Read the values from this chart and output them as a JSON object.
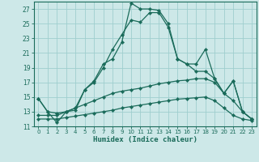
{
  "xlabel": "Humidex (Indice chaleur)",
  "bg_color": "#cde8e8",
  "grid_color": "#9fcece",
  "line_color": "#1a6b5a",
  "marker": "D",
  "markersize": 2.2,
  "linewidth": 0.9,
  "xlim": [
    -0.5,
    23.5
  ],
  "ylim": [
    11,
    28
  ],
  "yticks": [
    11,
    13,
    15,
    17,
    19,
    21,
    23,
    25,
    27
  ],
  "xticks": [
    0,
    1,
    2,
    3,
    4,
    5,
    6,
    7,
    8,
    9,
    10,
    11,
    12,
    13,
    14,
    15,
    16,
    17,
    18,
    19,
    20,
    21,
    22,
    23
  ],
  "series": [
    [
      14.8,
      13.0,
      11.5,
      13.0,
      13.2,
      16.0,
      17.2,
      19.5,
      20.2,
      22.5,
      27.8,
      27.0,
      27.0,
      26.8,
      25.0,
      20.2,
      19.5,
      19.5,
      21.5,
      17.5,
      15.5,
      17.2,
      13.0,
      12.0
    ],
    [
      14.8,
      13.0,
      12.8,
      13.0,
      13.5,
      16.0,
      17.0,
      19.0,
      21.5,
      23.5,
      25.5,
      25.2,
      26.5,
      26.5,
      24.5,
      20.2,
      19.5,
      18.5,
      18.5,
      17.5,
      15.5,
      17.2,
      13.0,
      12.0
    ],
    [
      12.5,
      12.5,
      12.5,
      13.0,
      13.5,
      14.0,
      14.5,
      15.0,
      15.5,
      15.8,
      16.0,
      16.2,
      16.5,
      16.8,
      17.0,
      17.2,
      17.3,
      17.5,
      17.5,
      17.0,
      15.5,
      14.5,
      13.0,
      12.0
    ],
    [
      12.0,
      12.0,
      12.0,
      12.2,
      12.4,
      12.6,
      12.8,
      13.0,
      13.2,
      13.5,
      13.7,
      13.9,
      14.1,
      14.3,
      14.5,
      14.7,
      14.8,
      14.9,
      15.0,
      14.5,
      13.5,
      12.5,
      12.0,
      11.8
    ]
  ]
}
